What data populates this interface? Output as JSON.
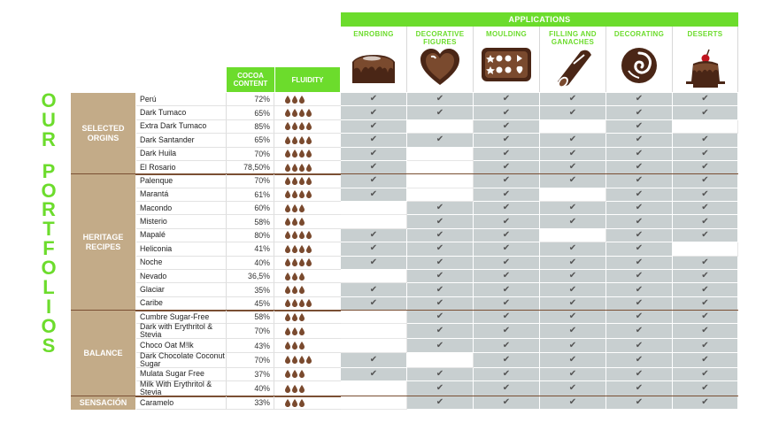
{
  "title_vertical": [
    "O",
    "U",
    "R",
    "",
    "P",
    "O",
    "R",
    "T",
    "F",
    "O",
    "L",
    "I",
    "O",
    "S"
  ],
  "applications_label": "APPLICATIONS",
  "cocoa_label": "COCOA CONTENT",
  "fluidity_label": "FLUIDITY",
  "check_glyph": "✔",
  "colors": {
    "accent": "#6cdc2c",
    "group": "#c3ab88",
    "drop": "#7a4a2e",
    "cell_on": "#c8cfd0",
    "separator": "#7a4f33"
  },
  "applications": [
    {
      "label": "ENROBING",
      "icon": "enrobing-icon"
    },
    {
      "label": "DECORATIVE FIGURES",
      "icon": "heart-icon"
    },
    {
      "label": "MOULDING",
      "icon": "mould-icon"
    },
    {
      "label": "FILLING AND GANACHES",
      "icon": "filling-icon"
    },
    {
      "label": "DECORATING",
      "icon": "decorating-icon"
    },
    {
      "label": "DESERTS",
      "icon": "dessert-icon"
    }
  ],
  "groups": [
    {
      "label": "SELECTED ORGINS",
      "rows": [
        {
          "name": "Perú",
          "cocoa": "72%",
          "drops": 3,
          "apps": [
            1,
            1,
            1,
            1,
            1,
            1
          ]
        },
        {
          "name": "Dark Tumaco",
          "cocoa": "65%",
          "drops": 4,
          "apps": [
            1,
            1,
            1,
            1,
            1,
            1
          ]
        },
        {
          "name": "Extra Dark Tumaco",
          "cocoa": "85%",
          "drops": 4,
          "apps": [
            1,
            0,
            1,
            0,
            1,
            0
          ]
        },
        {
          "name": "Dark Santander",
          "cocoa": "65%",
          "drops": 4,
          "apps": [
            1,
            1,
            1,
            1,
            1,
            1
          ]
        },
        {
          "name": "Dark Huila",
          "cocoa": "70%",
          "drops": 4,
          "apps": [
            1,
            0,
            1,
            1,
            1,
            1
          ]
        },
        {
          "name": "El Rosario",
          "cocoa": "78,50%",
          "drops": 4,
          "apps": [
            1,
            0,
            1,
            1,
            1,
            1
          ]
        }
      ]
    },
    {
      "label": "HERITAGE RECIPES",
      "rows": [
        {
          "name": "Palenque",
          "cocoa": "70%",
          "drops": 4,
          "apps": [
            1,
            0,
            1,
            1,
            1,
            1
          ]
        },
        {
          "name": "Marantá",
          "cocoa": "61%",
          "drops": 4,
          "apps": [
            1,
            0,
            1,
            0,
            1,
            1
          ]
        },
        {
          "name": "Macondo",
          "cocoa": "60%",
          "drops": 3,
          "apps": [
            0,
            1,
            1,
            1,
            1,
            1
          ]
        },
        {
          "name": "Misterio",
          "cocoa": "58%",
          "drops": 3,
          "apps": [
            0,
            1,
            1,
            1,
            1,
            1
          ]
        },
        {
          "name": "Mapalé",
          "cocoa": "80%",
          "drops": 4,
          "apps": [
            1,
            1,
            1,
            0,
            1,
            1
          ]
        },
        {
          "name": "Heliconia",
          "cocoa": "41%",
          "drops": 4,
          "apps": [
            1,
            1,
            1,
            1,
            1,
            0
          ]
        },
        {
          "name": "Noche",
          "cocoa": "40%",
          "drops": 4,
          "apps": [
            1,
            1,
            1,
            1,
            1,
            1
          ]
        },
        {
          "name": "Nevado",
          "cocoa": "36,5%",
          "drops": 3,
          "apps": [
            0,
            1,
            1,
            1,
            1,
            1
          ]
        },
        {
          "name": "Glaciar",
          "cocoa": "35%",
          "drops": 3,
          "apps": [
            1,
            1,
            1,
            1,
            1,
            1
          ]
        },
        {
          "name": "Caribe",
          "cocoa": "45%",
          "drops": 4,
          "apps": [
            1,
            1,
            1,
            1,
            1,
            1
          ]
        }
      ]
    },
    {
      "label": "BALANCE",
      "rows": [
        {
          "name": "Cumbre Sugar-Free",
          "cocoa": "58%",
          "drops": 3,
          "apps": [
            0,
            1,
            1,
            1,
            1,
            1
          ]
        },
        {
          "name": "Dark with Erythritol & Stevia",
          "cocoa": "70%",
          "drops": 3,
          "apps": [
            0,
            1,
            1,
            1,
            1,
            1
          ]
        },
        {
          "name": "Choco Oat M!lk",
          "cocoa": "43%",
          "drops": 3,
          "apps": [
            0,
            1,
            1,
            1,
            1,
            1
          ]
        },
        {
          "name": "Dark Chocolate Coconut Sugar",
          "cocoa": "70%",
          "drops": 4,
          "apps": [
            1,
            0,
            1,
            1,
            1,
            1
          ]
        },
        {
          "name": "Mulata Sugar Free",
          "cocoa": "37%",
          "drops": 3,
          "apps": [
            1,
            1,
            1,
            1,
            1,
            1
          ]
        },
        {
          "name": "Milk With Erythritol & Stevia",
          "cocoa": "40%",
          "drops": 3,
          "apps": [
            0,
            1,
            1,
            1,
            1,
            1
          ]
        }
      ]
    },
    {
      "label": "SENSACIÓN",
      "rows": [
        {
          "name": "Caramelo",
          "cocoa": "33%",
          "drops": 3,
          "apps": [
            0,
            1,
            1,
            1,
            1,
            1
          ]
        }
      ]
    }
  ]
}
